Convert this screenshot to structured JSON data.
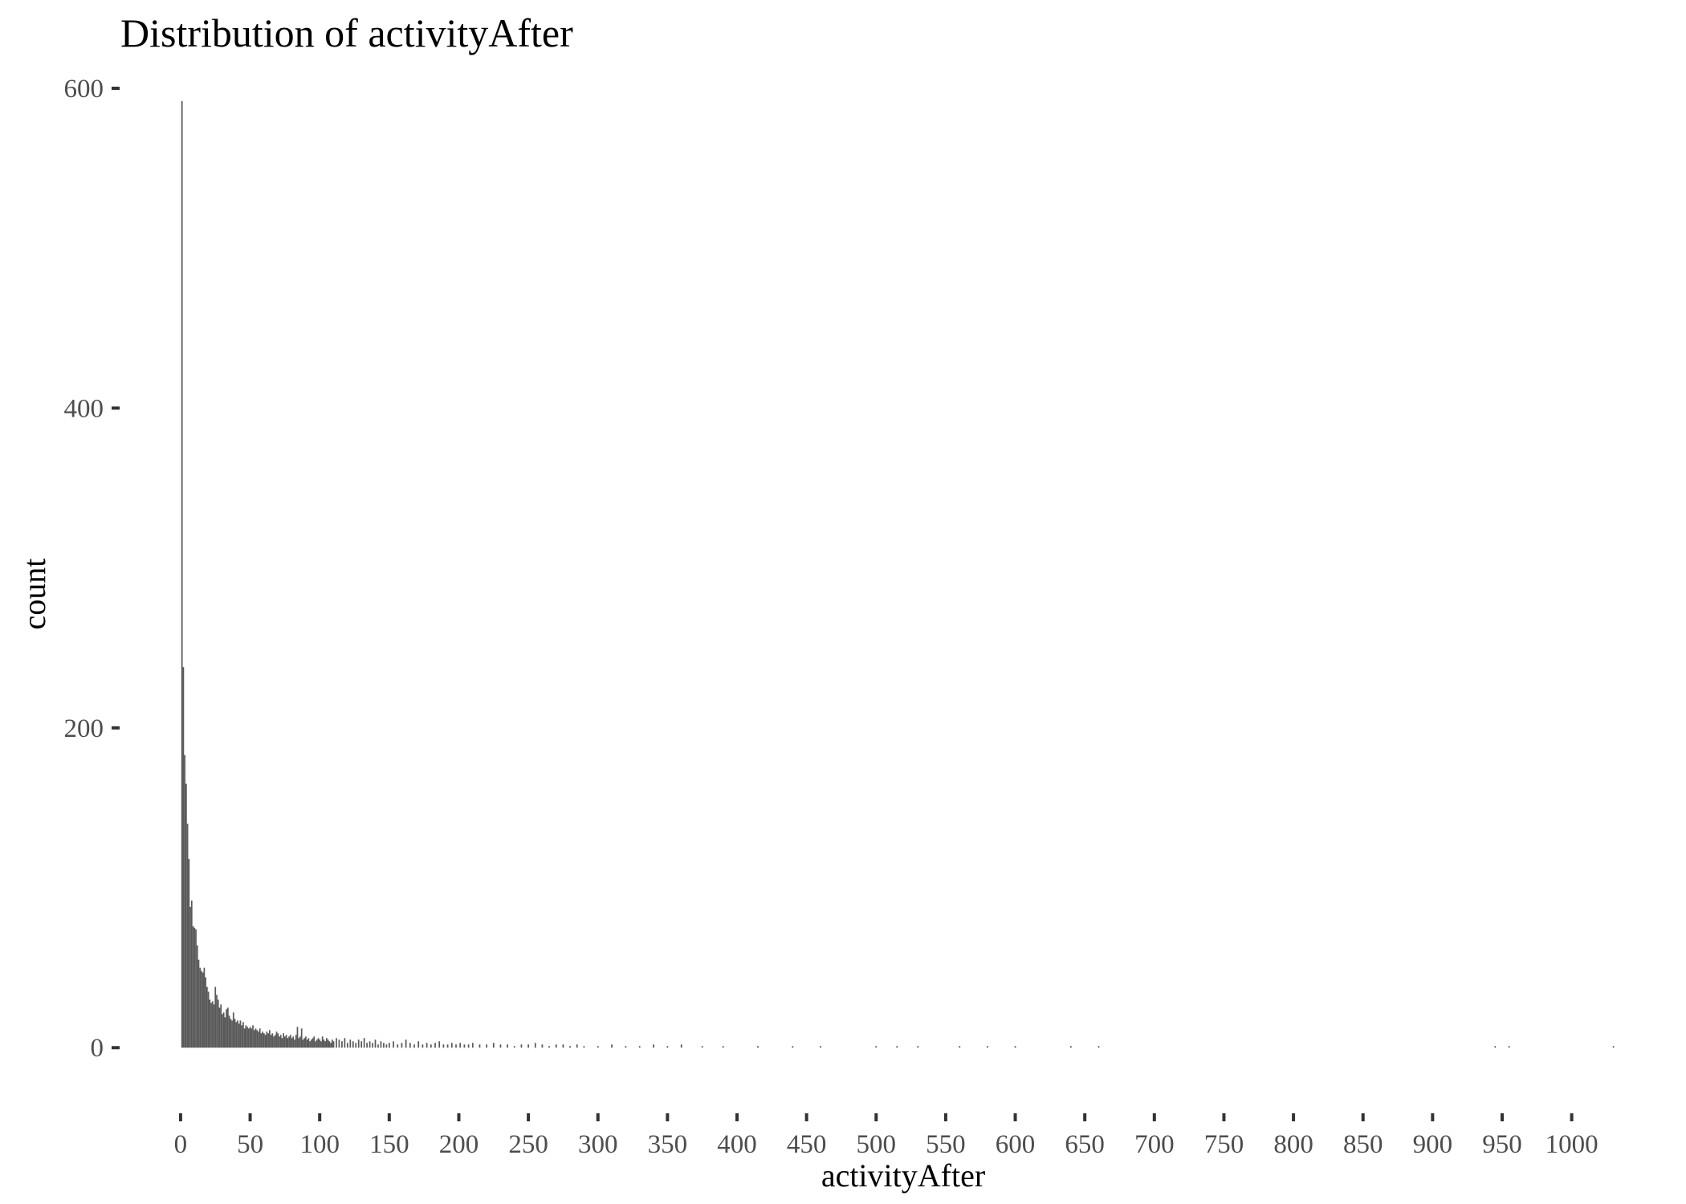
{
  "chart_data": {
    "type": "bar",
    "title": "Distribution of activityAfter",
    "xlabel": "activityAfter",
    "ylabel": "count",
    "xlim": [
      -4,
      1036
    ],
    "ylim": [
      -30,
      600
    ],
    "x_ticks": [
      0,
      50,
      100,
      150,
      200,
      250,
      300,
      350,
      400,
      450,
      500,
      550,
      600,
      650,
      700,
      750,
      800,
      850,
      900,
      950,
      1000
    ],
    "y_ticks": [
      0,
      200,
      400,
      600
    ],
    "grid": false,
    "bar_color": "#595959",
    "x": [
      1,
      2,
      3,
      4,
      5,
      6,
      7,
      8,
      9,
      10,
      11,
      12,
      13,
      14,
      15,
      16,
      17,
      18,
      19,
      20,
      21,
      22,
      23,
      24,
      25,
      26,
      27,
      28,
      29,
      30,
      31,
      32,
      33,
      34,
      35,
      36,
      37,
      38,
      39,
      40,
      41,
      42,
      43,
      44,
      45,
      46,
      47,
      48,
      49,
      50,
      51,
      52,
      53,
      54,
      55,
      56,
      57,
      58,
      59,
      60,
      61,
      62,
      63,
      64,
      65,
      66,
      67,
      68,
      69,
      70,
      71,
      72,
      73,
      74,
      75,
      76,
      77,
      78,
      79,
      80,
      81,
      82,
      83,
      84,
      85,
      86,
      87,
      88,
      89,
      90,
      91,
      92,
      93,
      94,
      95,
      96,
      97,
      98,
      99,
      100,
      101,
      102,
      103,
      104,
      105,
      106,
      107,
      108,
      109,
      110,
      112,
      114,
      116,
      118,
      120,
      122,
      124,
      126,
      128,
      130,
      132,
      134,
      136,
      138,
      140,
      142,
      144,
      146,
      148,
      150,
      153,
      156,
      159,
      162,
      165,
      168,
      171,
      174,
      177,
      180,
      183,
      186,
      189,
      192,
      195,
      198,
      201,
      204,
      207,
      210,
      215,
      220,
      225,
      230,
      235,
      240,
      245,
      250,
      255,
      260,
      265,
      270,
      275,
      280,
      285,
      290,
      300,
      310,
      320,
      330,
      340,
      350,
      360,
      375,
      390,
      415,
      440,
      460,
      500,
      515,
      530,
      560,
      580,
      600,
      640,
      660,
      945,
      955,
      1030
    ],
    "values": [
      592,
      238,
      183,
      165,
      140,
      118,
      88,
      92,
      76,
      75,
      74,
      64,
      55,
      50,
      48,
      47,
      50,
      44,
      38,
      35,
      30,
      28,
      29,
      27,
      38,
      33,
      30,
      25,
      27,
      21,
      22,
      19,
      24,
      25,
      20,
      18,
      17,
      22,
      18,
      16,
      17,
      15,
      17,
      14,
      16,
      12,
      14,
      13,
      12,
      13,
      12,
      14,
      11,
      12,
      11,
      10,
      12,
      9,
      10,
      9,
      8,
      10,
      9,
      11,
      8,
      9,
      7,
      8,
      10,
      9,
      7,
      8,
      6,
      9,
      7,
      8,
      6,
      7,
      8,
      6,
      7,
      5,
      8,
      13,
      6,
      7,
      12,
      5,
      6,
      7,
      5,
      6,
      4,
      5,
      6,
      7,
      4,
      5,
      6,
      5,
      4,
      7,
      5,
      4,
      6,
      5,
      4,
      3,
      5,
      4,
      6,
      5,
      4,
      6,
      3,
      5,
      4,
      3,
      5,
      4,
      6,
      3,
      4,
      3,
      5,
      2,
      4,
      3,
      2,
      3,
      4,
      2,
      3,
      5,
      3,
      2,
      4,
      2,
      3,
      2,
      3,
      4,
      2,
      2,
      3,
      2,
      3,
      2,
      2,
      3,
      2,
      2,
      3,
      2,
      2,
      1,
      2,
      2,
      3,
      2,
      1,
      2,
      2,
      1,
      2,
      1,
      1,
      2,
      1,
      1,
      2,
      1,
      2,
      1,
      1,
      1,
      1,
      1,
      1,
      1,
      1,
      1,
      1,
      1,
      1,
      1,
      1,
      1,
      1
    ]
  }
}
